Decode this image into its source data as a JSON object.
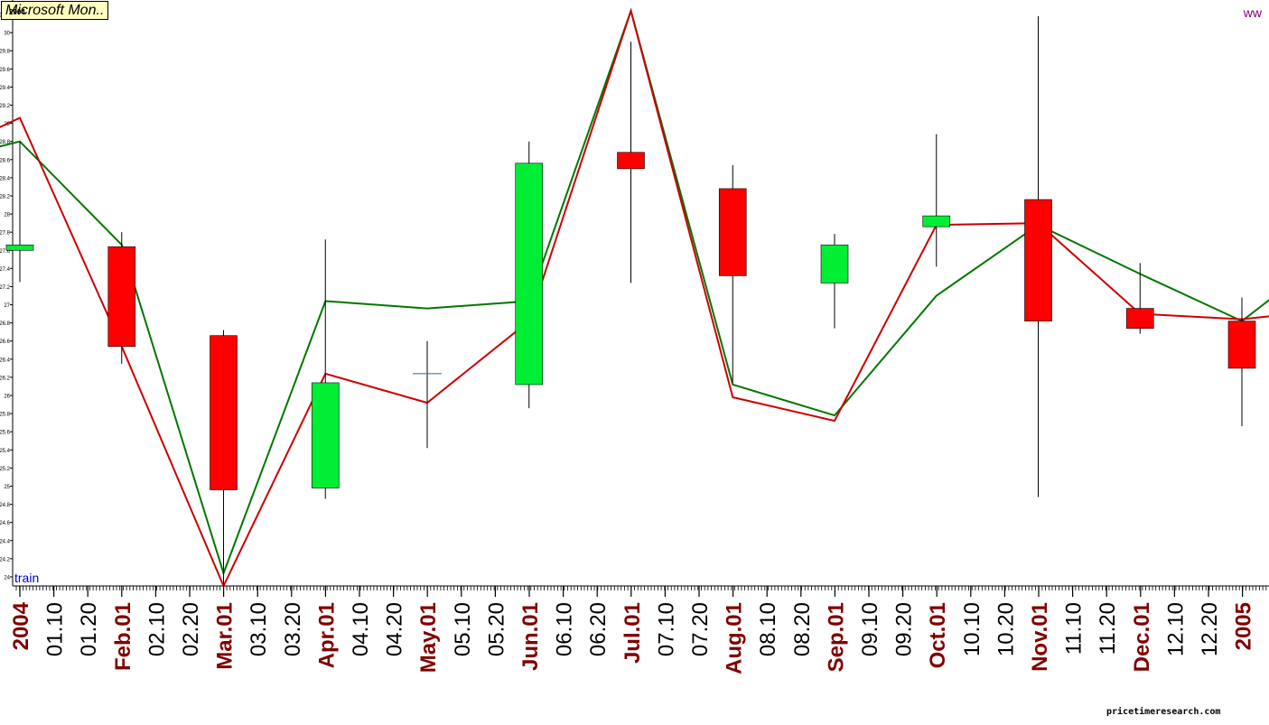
{
  "title": "Microsoft Mon..",
  "corner_label": "ww",
  "series_label": "train",
  "watermark": "pricetimeresearch.com",
  "year_label": "2004",
  "colors": {
    "up": "#00ee33",
    "down": "#ff0000",
    "line_green": "#007700",
    "line_red": "#cc0000",
    "label_major": "#800000",
    "label_minor": "#000000"
  },
  "chart_data": {
    "type": "candlestick",
    "ylim": [
      23.9,
      30.3
    ],
    "yticks": [
      "30.2",
      "30",
      "29.8",
      "29.6",
      "29.4",
      "29.2",
      "29",
      "28.8",
      "28.6",
      "28.4",
      "28.2",
      "28",
      "27.8",
      "27.6",
      "27.4",
      "27.2",
      "27",
      "26.8",
      "26.6",
      "26.4",
      "26.2",
      "26",
      "25.8",
      "25.6",
      "25.4",
      "25.2",
      "25",
      "24.8",
      "24.6",
      "24.4",
      "24.2",
      "24"
    ],
    "xlabels": [
      {
        "text": "2004",
        "major": true
      },
      {
        "text": "01.10",
        "major": false
      },
      {
        "text": "01.20",
        "major": false
      },
      {
        "text": "Feb.01",
        "major": true
      },
      {
        "text": "02.10",
        "major": false
      },
      {
        "text": "02.20",
        "major": false
      },
      {
        "text": "Mar.01",
        "major": true
      },
      {
        "text": "03.10",
        "major": false
      },
      {
        "text": "03.20",
        "major": false
      },
      {
        "text": "Apr.01",
        "major": true
      },
      {
        "text": "04.10",
        "major": false
      },
      {
        "text": "04.20",
        "major": false
      },
      {
        "text": "May.01",
        "major": true
      },
      {
        "text": "05.10",
        "major": false
      },
      {
        "text": "05.20",
        "major": false
      },
      {
        "text": "Jun.01",
        "major": true
      },
      {
        "text": "06.10",
        "major": false
      },
      {
        "text": "06.20",
        "major": false
      },
      {
        "text": "Jul.01",
        "major": true
      },
      {
        "text": "07.10",
        "major": false
      },
      {
        "text": "07.20",
        "major": false
      },
      {
        "text": "Aug.01",
        "major": true
      },
      {
        "text": "08.10",
        "major": false
      },
      {
        "text": "08.20",
        "major": false
      },
      {
        "text": "Sep.01",
        "major": true
      },
      {
        "text": "09.10",
        "major": false
      },
      {
        "text": "09.20",
        "major": false
      },
      {
        "text": "Oct.01",
        "major": true
      },
      {
        "text": "10.10",
        "major": false
      },
      {
        "text": "10.20",
        "major": false
      },
      {
        "text": "Nov.01",
        "major": true
      },
      {
        "text": "11.10",
        "major": false
      },
      {
        "text": "11.20",
        "major": false
      },
      {
        "text": "Dec.01",
        "major": true
      },
      {
        "text": "12.10",
        "major": false
      },
      {
        "text": "12.20",
        "major": false
      },
      {
        "text": "2005",
        "major": true
      },
      {
        "text": "01.10",
        "major": false
      }
    ],
    "candles": [
      {
        "month": "Jan 2004",
        "open": 27.6,
        "high": 28.8,
        "low": 27.25,
        "close": 27.66
      },
      {
        "month": "Feb 2004",
        "open": 27.64,
        "high": 27.8,
        "low": 26.35,
        "close": 26.54
      },
      {
        "month": "Mar 2004",
        "open": 26.66,
        "high": 26.72,
        "low": 23.9,
        "close": 24.96
      },
      {
        "month": "Apr 2004",
        "open": 24.98,
        "high": 27.72,
        "low": 24.86,
        "close": 26.14
      },
      {
        "month": "May 2004",
        "open": 26.24,
        "high": 26.6,
        "low": 25.42,
        "close": 26.24
      },
      {
        "month": "Jun 2004",
        "open": 26.12,
        "high": 28.8,
        "low": 25.86,
        "close": 28.56
      },
      {
        "month": "Jul 2004",
        "open": 28.68,
        "high": 29.9,
        "low": 27.24,
        "close": 28.5
      },
      {
        "month": "Aug 2004",
        "open": 28.28,
        "high": 28.54,
        "low": 26.14,
        "close": 27.32
      },
      {
        "month": "Sep 2004",
        "open": 27.24,
        "high": 27.78,
        "low": 26.74,
        "close": 27.66
      },
      {
        "month": "Oct 2004",
        "open": 27.86,
        "high": 28.88,
        "low": 27.42,
        "close": 27.98
      },
      {
        "month": "Nov 2004",
        "open": 28.16,
        "high": 30.18,
        "low": 24.88,
        "close": 26.82
      },
      {
        "month": "Dec 2004",
        "open": 26.96,
        "high": 27.46,
        "low": 26.68,
        "close": 26.74
      },
      {
        "month": "Jan 2005",
        "open": 26.82,
        "high": 27.08,
        "low": 25.66,
        "close": 26.3
      }
    ],
    "lines": [
      {
        "color": "green",
        "points": [
          [
            28.66,
            -0.5
          ],
          [
            28.8,
            0
          ],
          [
            27.66,
            1
          ],
          [
            24.04,
            2
          ],
          [
            27.04,
            3
          ],
          [
            26.96,
            4
          ],
          [
            27.04,
            5
          ],
          [
            30.24,
            6
          ],
          [
            26.12,
            7
          ],
          [
            25.78,
            8
          ],
          [
            27.1,
            9
          ],
          [
            27.88,
            10
          ],
          [
            27.34,
            11
          ],
          [
            26.82,
            12
          ],
          [
            27.34,
            12.6
          ],
          [
            27.32,
            13.5
          ]
        ]
      },
      {
        "color": "red",
        "points": [
          [
            28.8,
            -0.5
          ],
          [
            29.06,
            0
          ],
          [
            26.54,
            1
          ],
          [
            23.9,
            2
          ],
          [
            26.24,
            3
          ],
          [
            25.92,
            4
          ],
          [
            26.82,
            5
          ],
          [
            30.24,
            6
          ],
          [
            25.98,
            7
          ],
          [
            25.72,
            8
          ],
          [
            27.88,
            9
          ],
          [
            27.9,
            10
          ],
          [
            26.9,
            11
          ],
          [
            26.84,
            12
          ],
          [
            26.96,
            13
          ],
          [
            27.06,
            13.5
          ]
        ]
      }
    ]
  }
}
